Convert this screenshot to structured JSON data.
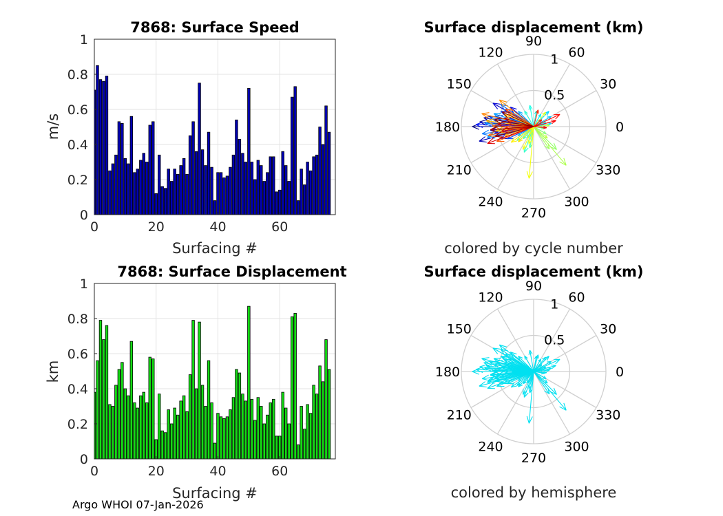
{
  "chart_data": [
    {
      "id": "speed",
      "type": "bar",
      "title": "7868: Surface Speed",
      "xlabel": "Surfacing #",
      "ylabel": "m/s",
      "xlim": [
        0,
        78
      ],
      "ylim": [
        0,
        1
      ],
      "xticks": [
        0,
        20,
        40,
        60
      ],
      "yticks": [
        0,
        0.2,
        0.4,
        0.6,
        0.8,
        1
      ],
      "grid": true,
      "bar_color": "#0000b4",
      "x": [
        0,
        1,
        2,
        3,
        4,
        5,
        6,
        7,
        8,
        9,
        10,
        11,
        12,
        13,
        14,
        15,
        16,
        17,
        18,
        19,
        20,
        21,
        22,
        23,
        24,
        25,
        26,
        27,
        28,
        29,
        30,
        31,
        32,
        33,
        34,
        35,
        36,
        37,
        38,
        39,
        40,
        41,
        42,
        43,
        44,
        45,
        46,
        47,
        48,
        49,
        50,
        51,
        52,
        53,
        54,
        55,
        56,
        57,
        58,
        59,
        60,
        61,
        62,
        63,
        64,
        65,
        66,
        67,
        68,
        69,
        70,
        71,
        72,
        73,
        74,
        75,
        76
      ],
      "values": [
        0.71,
        0.85,
        0.77,
        0.76,
        0.79,
        0.25,
        0.29,
        0.34,
        0.53,
        0.52,
        0.32,
        0.29,
        0.56,
        0.24,
        0.26,
        0.31,
        0.35,
        0.3,
        0.51,
        0.53,
        0.12,
        0.34,
        0.16,
        0.15,
        0.26,
        0.19,
        0.26,
        0.23,
        0.28,
        0.32,
        0.23,
        0.45,
        0.53,
        0.36,
        0.75,
        0.37,
        0.28,
        0.47,
        0.27,
        0.08,
        0.24,
        0.24,
        0.21,
        0.22,
        0.27,
        0.34,
        0.54,
        0.43,
        0.35,
        0.3,
        0.72,
        0.3,
        0.2,
        0.31,
        0.28,
        0.19,
        0.24,
        0.33,
        0.33,
        0.13,
        0.14,
        0.36,
        0.28,
        0.19,
        0.67,
        0.73,
        0.08,
        0.26,
        0.17,
        0.3,
        0.25,
        0.33,
        0.34,
        0.5,
        0.4,
        0.62,
        0.47
      ]
    },
    {
      "id": "displacement",
      "type": "bar",
      "title": "7868: Surface Displacement",
      "xlabel": "Surfacing #",
      "ylabel": "km",
      "xlim": [
        0,
        78
      ],
      "ylim": [
        0,
        1
      ],
      "xticks": [
        0,
        20,
        40,
        60
      ],
      "yticks": [
        0,
        0.2,
        0.4,
        0.6,
        0.8,
        1
      ],
      "grid": true,
      "bar_color": "#14dc14",
      "x": [
        0,
        1,
        2,
        3,
        4,
        5,
        6,
        7,
        8,
        9,
        10,
        11,
        12,
        13,
        14,
        15,
        16,
        17,
        18,
        19,
        20,
        21,
        22,
        23,
        24,
        25,
        26,
        27,
        28,
        29,
        30,
        31,
        32,
        33,
        34,
        35,
        36,
        37,
        38,
        39,
        40,
        41,
        42,
        43,
        44,
        45,
        46,
        47,
        48,
        49,
        50,
        51,
        52,
        53,
        54,
        55,
        56,
        57,
        58,
        59,
        60,
        61,
        62,
        63,
        64,
        65,
        66,
        67,
        68,
        69,
        70,
        71,
        72,
        73,
        74,
        75,
        76
      ],
      "values": [
        0.38,
        0.56,
        0.79,
        0.68,
        0.76,
        0.31,
        0.3,
        0.42,
        0.51,
        0.55,
        0.4,
        0.36,
        0.67,
        0.32,
        0.29,
        0.36,
        0.38,
        0.32,
        0.58,
        0.57,
        0.11,
        0.37,
        0.16,
        0.15,
        0.28,
        0.2,
        0.29,
        0.25,
        0.33,
        0.36,
        0.27,
        0.48,
        0.79,
        0.4,
        0.78,
        0.42,
        0.3,
        0.56,
        0.32,
        0.09,
        0.26,
        0.24,
        0.23,
        0.24,
        0.28,
        0.35,
        0.51,
        0.49,
        0.37,
        0.33,
        0.87,
        0.34,
        0.22,
        0.35,
        0.3,
        0.2,
        0.25,
        0.32,
        0.34,
        0.13,
        0.13,
        0.38,
        0.29,
        0.2,
        0.81,
        0.83,
        0.08,
        0.3,
        0.17,
        0.31,
        0.26,
        0.42,
        0.37,
        0.53,
        0.44,
        0.68,
        0.51
      ]
    },
    {
      "id": "polar-cycle",
      "type": "polar-compass",
      "title": "Surface displacement (km)",
      "caption": "colored by cycle number",
      "rlim": [
        0,
        1
      ],
      "rticks": [
        0.5,
        1
      ],
      "theta_ticks_deg": [
        0,
        30,
        60,
        90,
        120,
        150,
        180,
        210,
        240,
        270,
        300,
        330
      ],
      "colormap": "jet",
      "arrows": [
        {
          "angle": 180,
          "r": 0.85
        },
        {
          "angle": 175,
          "r": 0.75
        },
        {
          "angle": 170,
          "r": 0.7
        },
        {
          "angle": 185,
          "r": 0.6
        },
        {
          "angle": 195,
          "r": 0.78
        },
        {
          "angle": 165,
          "r": 0.55
        },
        {
          "angle": 150,
          "r": 0.65
        },
        {
          "angle": 140,
          "r": 0.42
        },
        {
          "angle": 200,
          "r": 0.48
        },
        {
          "angle": 160,
          "r": 0.35
        },
        {
          "angle": 190,
          "r": 0.55
        },
        {
          "angle": 178,
          "r": 0.8
        },
        {
          "angle": 172,
          "r": 0.45
        },
        {
          "angle": 155,
          "r": 0.5
        },
        {
          "angle": 205,
          "r": 0.4
        },
        {
          "angle": 168,
          "r": 0.62
        },
        {
          "angle": 182,
          "r": 0.3
        },
        {
          "angle": 146,
          "r": 0.55
        },
        {
          "angle": 188,
          "r": 0.72
        },
        {
          "angle": 176,
          "r": 0.68
        },
        {
          "angle": 193,
          "r": 0.66
        },
        {
          "angle": 162,
          "r": 0.58
        },
        {
          "angle": 135,
          "r": 0.3
        },
        {
          "angle": 210,
          "r": 0.25
        },
        {
          "angle": 30,
          "r": 0.28
        },
        {
          "angle": 45,
          "r": 0.3
        },
        {
          "angle": 10,
          "r": 0.25
        },
        {
          "angle": 60,
          "r": 0.2
        },
        {
          "angle": 20,
          "r": 0.18
        },
        {
          "angle": 80,
          "r": 0.22
        },
        {
          "angle": 100,
          "r": 0.3
        },
        {
          "angle": 120,
          "r": 0.25
        },
        {
          "angle": 250,
          "r": 0.38
        },
        {
          "angle": 260,
          "r": 0.3
        },
        {
          "angle": 230,
          "r": 0.22
        },
        {
          "angle": 220,
          "r": 0.3
        },
        {
          "angle": 240,
          "r": 0.18
        },
        {
          "angle": 350,
          "r": 0.15
        },
        {
          "angle": 330,
          "r": 0.2
        },
        {
          "angle": 315,
          "r": 0.45
        },
        {
          "angle": 305,
          "r": 0.38
        },
        {
          "angle": 310,
          "r": 0.7
        },
        {
          "angle": 320,
          "r": 0.25
        },
        {
          "angle": 5,
          "r": 0.22
        },
        {
          "angle": 50,
          "r": 0.26
        },
        {
          "angle": 255,
          "r": 0.25
        },
        {
          "angle": 265,
          "r": 0.72
        },
        {
          "angle": 245,
          "r": 0.35
        },
        {
          "angle": 215,
          "r": 0.38
        },
        {
          "angle": 225,
          "r": 0.3
        },
        {
          "angle": 158,
          "r": 0.44
        },
        {
          "angle": 186,
          "r": 0.52
        },
        {
          "angle": 173,
          "r": 0.66
        },
        {
          "angle": 197,
          "r": 0.42
        },
        {
          "angle": 152,
          "r": 0.38
        },
        {
          "angle": 142,
          "r": 0.6
        },
        {
          "angle": 166,
          "r": 0.74
        },
        {
          "angle": 179,
          "r": 0.57
        },
        {
          "angle": 191,
          "r": 0.64
        },
        {
          "angle": 202,
          "r": 0.55
        },
        {
          "angle": 148,
          "r": 0.46
        },
        {
          "angle": 183,
          "r": 0.4
        },
        {
          "angle": 170,
          "r": 0.36
        },
        {
          "angle": 75,
          "r": 0.24
        },
        {
          "angle": 40,
          "r": 0.15
        },
        {
          "angle": 25,
          "r": 0.4
        },
        {
          "angle": 15,
          "r": 0.32
        },
        {
          "angle": 355,
          "r": 0.18
        },
        {
          "angle": 200,
          "r": 0.68
        },
        {
          "angle": 188,
          "r": 0.45
        },
        {
          "angle": 176,
          "r": 0.5
        },
        {
          "angle": 164,
          "r": 0.42
        },
        {
          "angle": 184,
          "r": 0.6
        },
        {
          "angle": 194,
          "r": 0.55
        },
        {
          "angle": 155,
          "r": 0.48
        },
        {
          "angle": 170,
          "r": 0.55
        }
      ]
    },
    {
      "id": "polar-hemisphere",
      "type": "polar-compass",
      "title": "Surface displacement (km)",
      "caption": "colored by hemisphere",
      "rlim": [
        0,
        1
      ],
      "rticks": [
        0.5,
        1
      ],
      "theta_ticks_deg": [
        0,
        30,
        60,
        90,
        120,
        150,
        180,
        210,
        240,
        270,
        300,
        330
      ],
      "arrow_color": "#00e0f0",
      "arrows": [
        {
          "angle": 180,
          "r": 0.85
        },
        {
          "angle": 175,
          "r": 0.75
        },
        {
          "angle": 170,
          "r": 0.7
        },
        {
          "angle": 185,
          "r": 0.6
        },
        {
          "angle": 195,
          "r": 0.78
        },
        {
          "angle": 165,
          "r": 0.55
        },
        {
          "angle": 150,
          "r": 0.65
        },
        {
          "angle": 140,
          "r": 0.42
        },
        {
          "angle": 200,
          "r": 0.48
        },
        {
          "angle": 160,
          "r": 0.35
        },
        {
          "angle": 190,
          "r": 0.55
        },
        {
          "angle": 178,
          "r": 0.8
        },
        {
          "angle": 172,
          "r": 0.45
        },
        {
          "angle": 155,
          "r": 0.5
        },
        {
          "angle": 205,
          "r": 0.4
        },
        {
          "angle": 168,
          "r": 0.62
        },
        {
          "angle": 182,
          "r": 0.3
        },
        {
          "angle": 146,
          "r": 0.55
        },
        {
          "angle": 188,
          "r": 0.72
        },
        {
          "angle": 176,
          "r": 0.68
        },
        {
          "angle": 193,
          "r": 0.66
        },
        {
          "angle": 162,
          "r": 0.58
        },
        {
          "angle": 135,
          "r": 0.3
        },
        {
          "angle": 210,
          "r": 0.25
        },
        {
          "angle": 30,
          "r": 0.28
        },
        {
          "angle": 45,
          "r": 0.3
        },
        {
          "angle": 10,
          "r": 0.25
        },
        {
          "angle": 60,
          "r": 0.2
        },
        {
          "angle": 20,
          "r": 0.18
        },
        {
          "angle": 80,
          "r": 0.22
        },
        {
          "angle": 100,
          "r": 0.3
        },
        {
          "angle": 120,
          "r": 0.25
        },
        {
          "angle": 250,
          "r": 0.38
        },
        {
          "angle": 260,
          "r": 0.3
        },
        {
          "angle": 230,
          "r": 0.22
        },
        {
          "angle": 220,
          "r": 0.3
        },
        {
          "angle": 240,
          "r": 0.18
        },
        {
          "angle": 350,
          "r": 0.15
        },
        {
          "angle": 330,
          "r": 0.2
        },
        {
          "angle": 315,
          "r": 0.45
        },
        {
          "angle": 305,
          "r": 0.38
        },
        {
          "angle": 310,
          "r": 0.7
        },
        {
          "angle": 320,
          "r": 0.25
        },
        {
          "angle": 5,
          "r": 0.22
        },
        {
          "angle": 50,
          "r": 0.26
        },
        {
          "angle": 255,
          "r": 0.25
        },
        {
          "angle": 265,
          "r": 0.72
        },
        {
          "angle": 245,
          "r": 0.35
        },
        {
          "angle": 215,
          "r": 0.38
        },
        {
          "angle": 225,
          "r": 0.3
        },
        {
          "angle": 158,
          "r": 0.44
        },
        {
          "angle": 186,
          "r": 0.52
        },
        {
          "angle": 173,
          "r": 0.66
        },
        {
          "angle": 197,
          "r": 0.42
        },
        {
          "angle": 152,
          "r": 0.38
        },
        {
          "angle": 142,
          "r": 0.6
        },
        {
          "angle": 166,
          "r": 0.74
        },
        {
          "angle": 179,
          "r": 0.57
        },
        {
          "angle": 191,
          "r": 0.64
        },
        {
          "angle": 202,
          "r": 0.55
        },
        {
          "angle": 148,
          "r": 0.46
        },
        {
          "angle": 183,
          "r": 0.4
        },
        {
          "angle": 170,
          "r": 0.36
        },
        {
          "angle": 75,
          "r": 0.24
        },
        {
          "angle": 40,
          "r": 0.15
        },
        {
          "angle": 25,
          "r": 0.4
        },
        {
          "angle": 15,
          "r": 0.32
        },
        {
          "angle": 355,
          "r": 0.18
        },
        {
          "angle": 200,
          "r": 0.68
        },
        {
          "angle": 188,
          "r": 0.45
        },
        {
          "angle": 176,
          "r": 0.5
        },
        {
          "angle": 164,
          "r": 0.42
        },
        {
          "angle": 184,
          "r": 0.6
        },
        {
          "angle": 194,
          "r": 0.55
        },
        {
          "angle": 155,
          "r": 0.48
        },
        {
          "angle": 170,
          "r": 0.55
        }
      ]
    }
  ],
  "footer": "Argo WHOI 07-Jan-2026"
}
